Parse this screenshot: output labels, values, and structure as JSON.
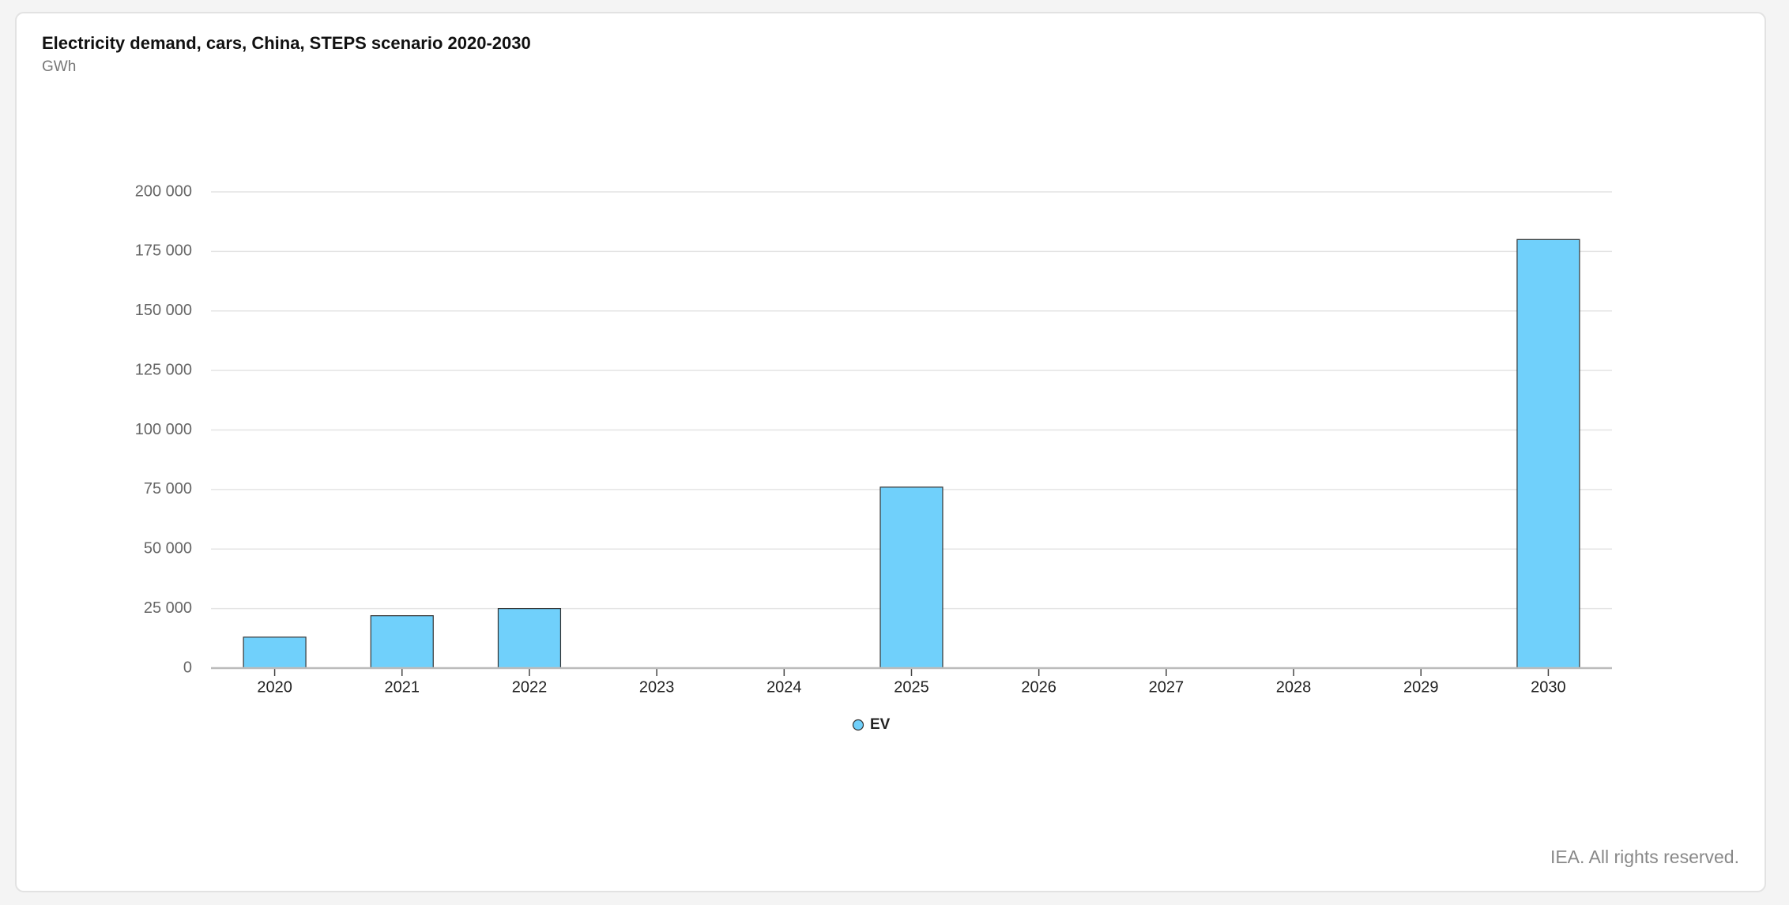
{
  "chart_data": {
    "type": "bar",
    "title": "Electricity demand, cars, China, STEPS scenario 2020-2030",
    "subtitle": "GWh",
    "categories": [
      "2020",
      "2021",
      "2022",
      "2023",
      "2024",
      "2025",
      "2026",
      "2027",
      "2028",
      "2029",
      "2030"
    ],
    "series": [
      {
        "name": "EV",
        "color": "#70d0fb",
        "values": [
          13000,
          22000,
          25000,
          null,
          null,
          76000,
          null,
          null,
          null,
          null,
          180000
        ]
      }
    ],
    "ylim": [
      0,
      200000
    ],
    "yticks": [
      0,
      {
        "value": 25000,
        "label": "25 000"
      },
      {
        "value": 50000,
        "label": "50 000"
      },
      {
        "value": 75000,
        "label": "75 000"
      },
      {
        "value": 100000,
        "label": "100 000"
      },
      {
        "value": 125000,
        "label": "125 000"
      },
      {
        "value": 150000,
        "label": "150 000"
      },
      {
        "value": 175000,
        "label": "175 000"
      },
      {
        "value": 200000,
        "label": "200 000"
      }
    ],
    "grid": true,
    "legend": "bottom",
    "credit": "IEA. All rights reserved."
  }
}
